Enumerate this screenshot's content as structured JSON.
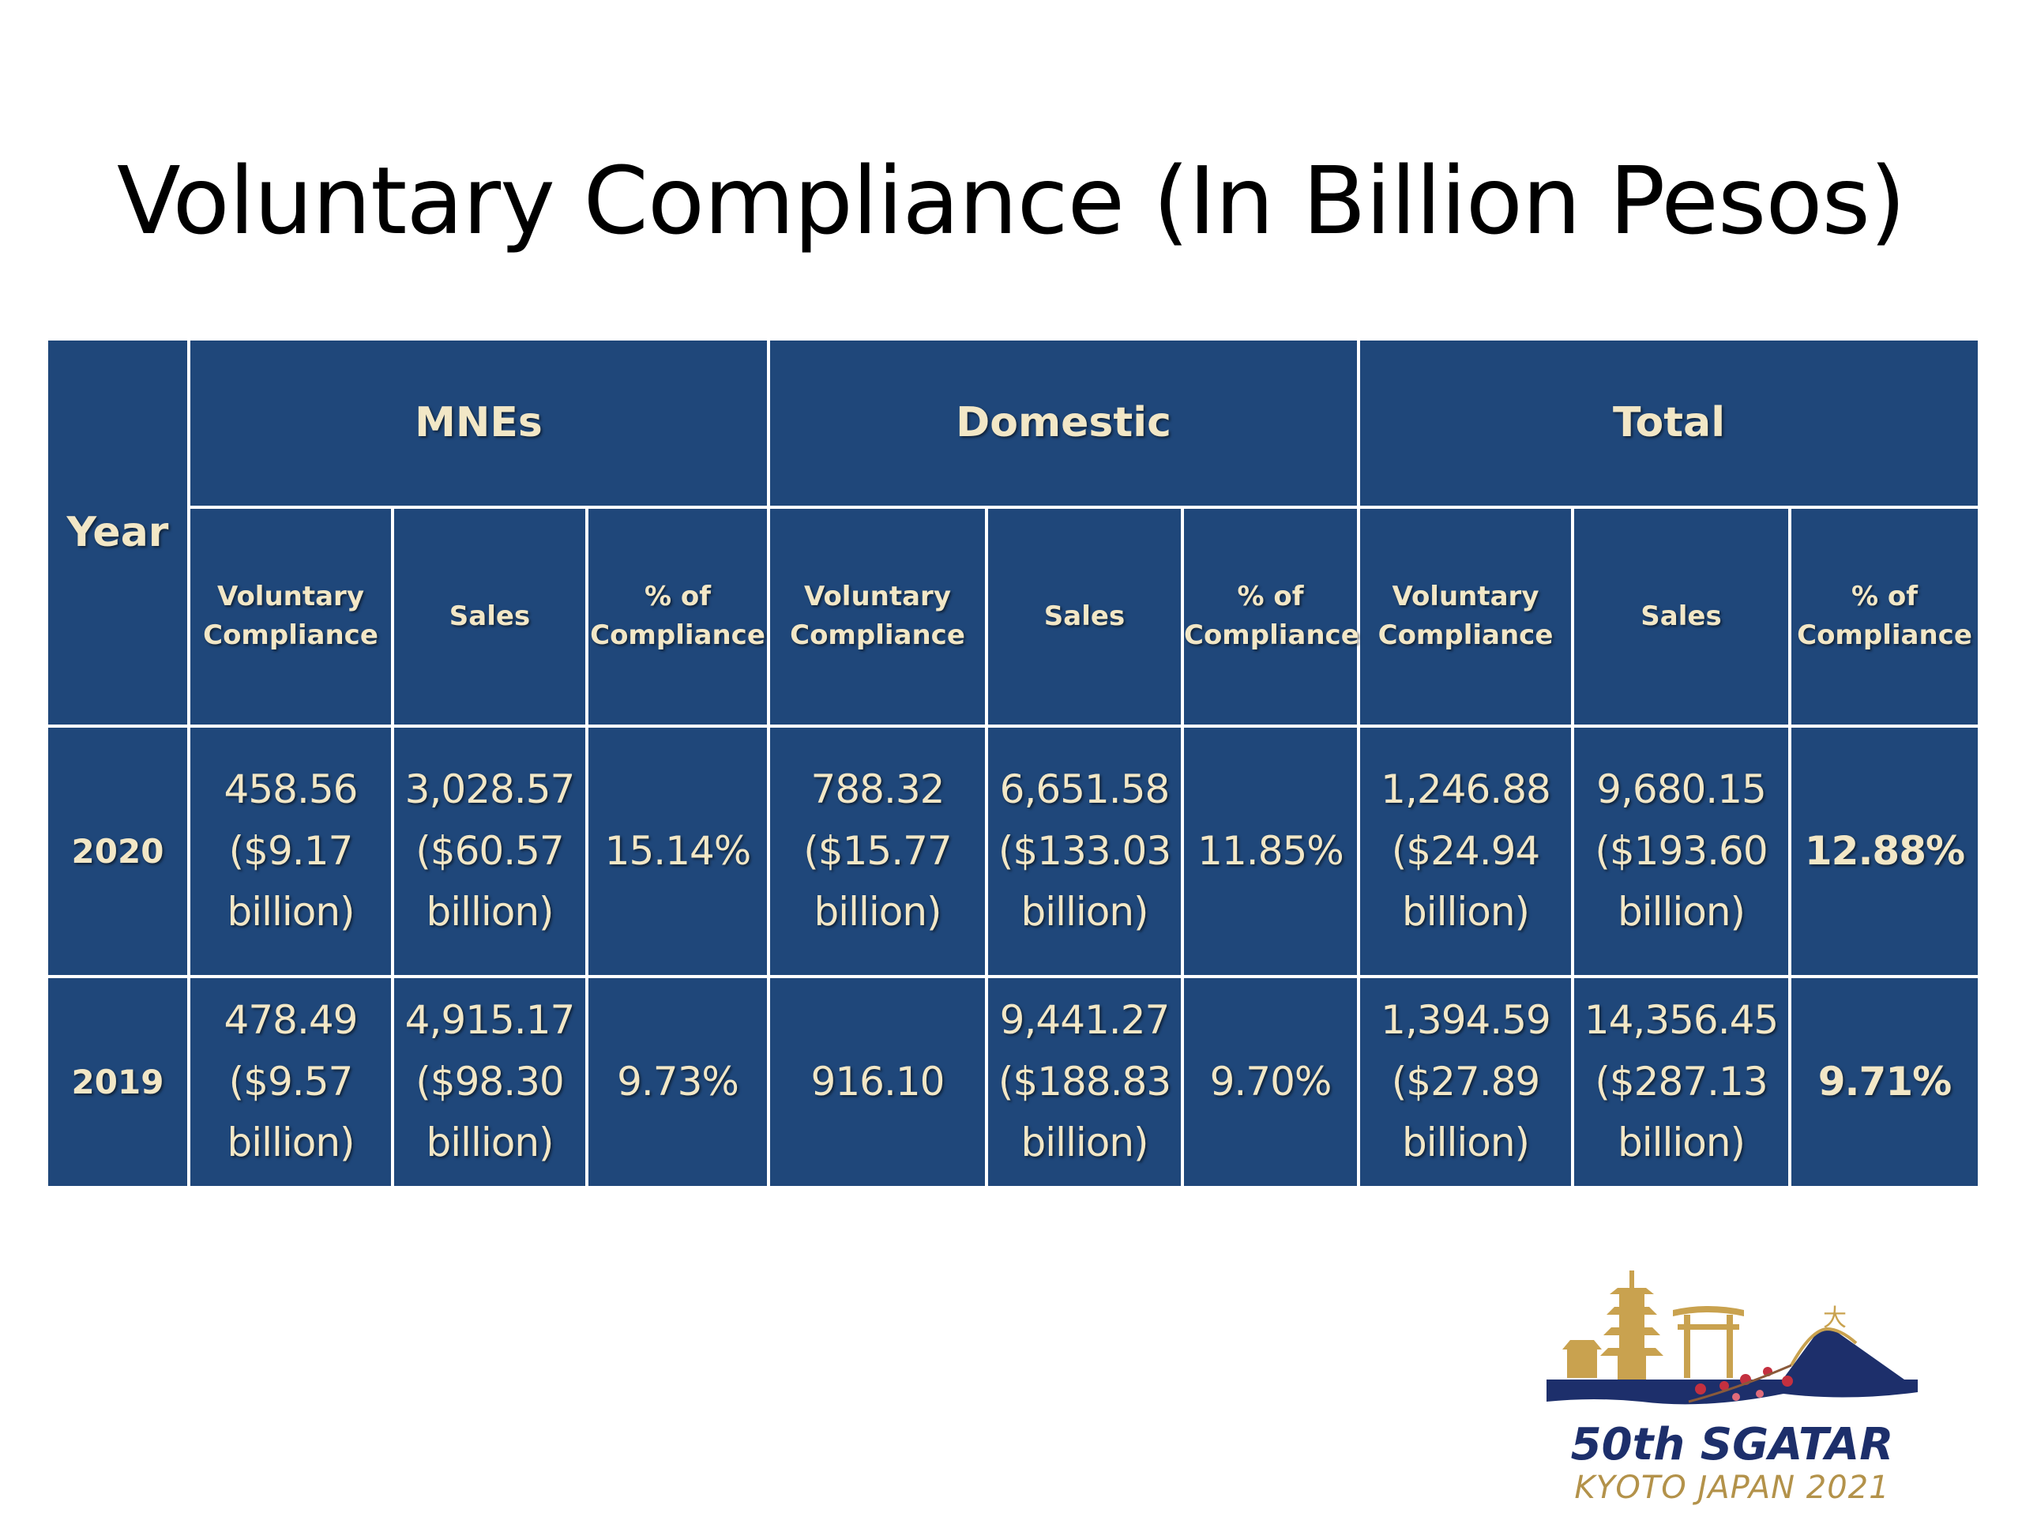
{
  "title": "Voluntary Compliance (In Billion Pesos)",
  "table": {
    "year_header": "Year",
    "groups": [
      "MNEs",
      "Domestic",
      "Total"
    ],
    "sub_headers": [
      [
        "Voluntary",
        "Compliance"
      ],
      [
        "Sales"
      ],
      [
        "% of",
        "Compliance"
      ],
      [
        "Voluntary",
        "Compliance"
      ],
      [
        "Sales"
      ],
      [
        "% of",
        "Compliance"
      ],
      [
        "Voluntary",
        "Compliance"
      ],
      [
        "Sales"
      ],
      [
        "% of",
        "Compliance"
      ]
    ],
    "rows": [
      {
        "year": "2020",
        "cells": [
          [
            "458.56",
            "($9.17",
            "billion)"
          ],
          [
            "3,028.57",
            "($60.57",
            "billion)"
          ],
          [
            "15.14%"
          ],
          [
            "788.32",
            "($15.77",
            "billion)"
          ],
          [
            "6,651.58",
            "($133.03",
            "billion)"
          ],
          [
            "11.85%"
          ],
          [
            "1,246.88",
            "($24.94",
            "billion)"
          ],
          [
            "9,680.15",
            "($193.60",
            "billion)"
          ],
          [
            "12.88%"
          ]
        ]
      },
      {
        "year": "2019",
        "cells": [
          [
            "478.49",
            "($9.57",
            "billion)"
          ],
          [
            "4,915.17",
            "($98.30",
            "billion)"
          ],
          [
            "9.73%"
          ],
          [
            "916.10"
          ],
          [
            "9,441.27",
            "($188.83",
            "billion)"
          ],
          [
            "9.70%"
          ],
          [
            "1,394.59",
            "($27.89",
            "billion)"
          ],
          [
            "14,356.45",
            "($287.13",
            "billion)"
          ],
          [
            "9.71%"
          ]
        ]
      }
    ]
  },
  "logo": {
    "line1": "50th SGATAR",
    "line2": "KYOTO JAPAN 2021",
    "mark_text": "大",
    "colors": {
      "navy": "#1d2f6b",
      "gold": "#c9a24f",
      "blossom": "#c4303f"
    }
  },
  "colors": {
    "table_bg": "#1f477a",
    "table_text": "#f2e7c6",
    "border": "#ffffff"
  }
}
